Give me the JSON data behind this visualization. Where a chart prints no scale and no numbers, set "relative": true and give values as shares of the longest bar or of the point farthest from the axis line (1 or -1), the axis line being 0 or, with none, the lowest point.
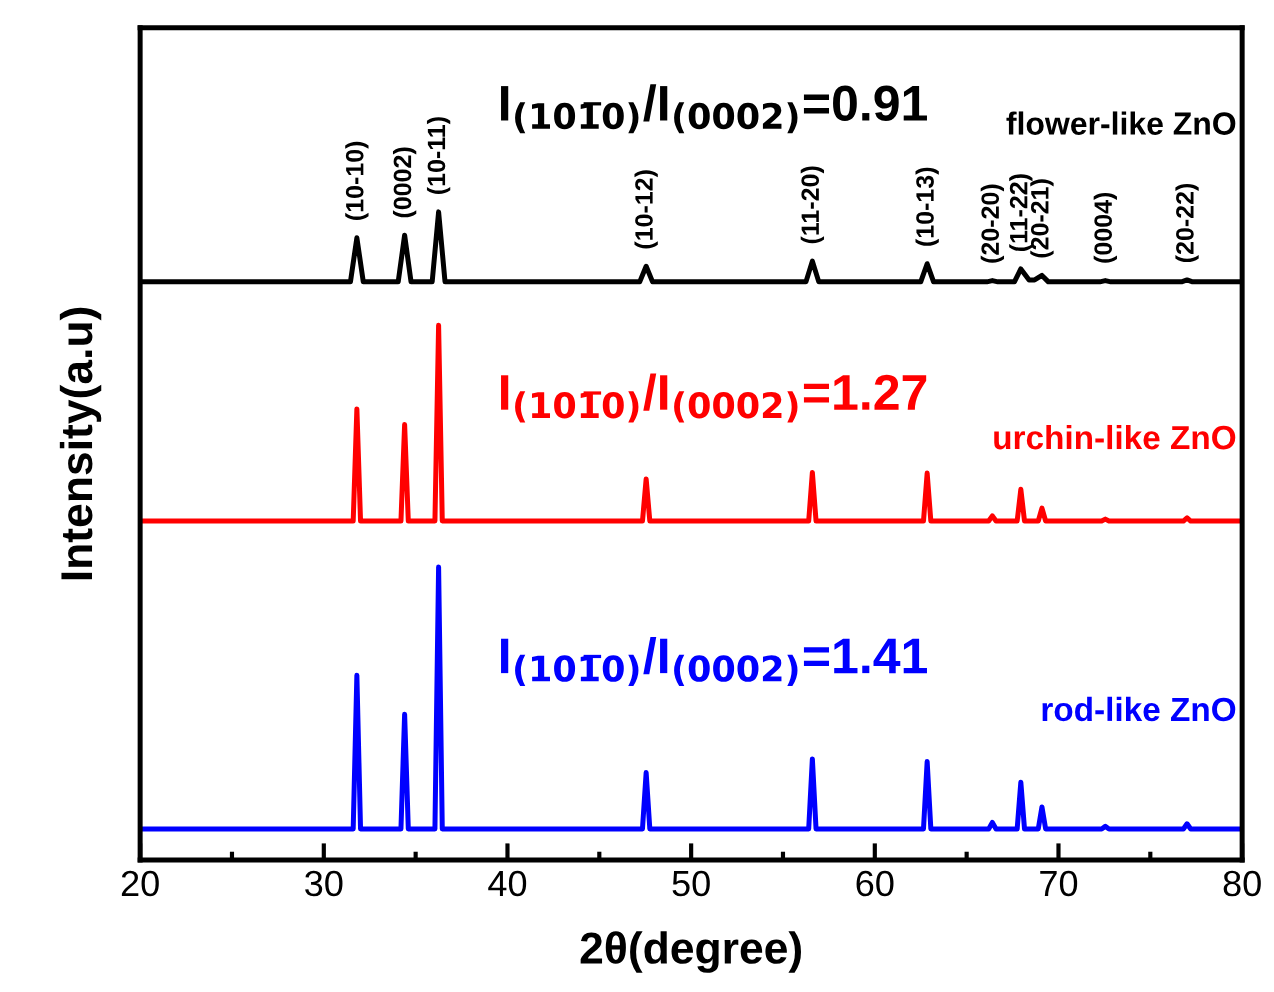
{
  "chart_data": {
    "type": "line",
    "relative": true,
    "xlabel": "2θ(degree)",
    "ylabel": "Intensity(a.u)",
    "xlim": [
      20,
      80
    ],
    "xticks": [
      20,
      30,
      40,
      50,
      60,
      70,
      80
    ],
    "grid": false,
    "legend": false,
    "marker": "none",
    "line_style": "solid",
    "x": [
      20,
      31.6,
      31.8,
      32.0,
      34.2,
      34.4,
      34.6,
      36.05,
      36.25,
      36.45,
      47.35,
      47.55,
      47.75,
      56.4,
      56.6,
      56.8,
      62.65,
      62.85,
      63.05,
      66.2,
      66.4,
      66.6,
      67.75,
      67.95,
      68.15,
      68.9,
      69.1,
      69.3,
      72.35,
      72.55,
      72.75,
      76.8,
      77.0,
      77.2,
      80
    ],
    "series": [
      {
        "name": "flower-like ZnO",
        "color": "#000000",
        "x": [
          20,
          31.45,
          31.8,
          32.15,
          34.05,
          34.4,
          34.75,
          35.9,
          36.25,
          36.6,
          47.2,
          47.55,
          47.9,
          56.25,
          56.6,
          56.95,
          62.5,
          62.85,
          63.2,
          66.1,
          66.4,
          66.7,
          67.6,
          67.95,
          68.4,
          68.7,
          69.1,
          69.45,
          72.25,
          72.55,
          72.85,
          76.7,
          77.0,
          77.3,
          80
        ],
        "values": [
          0.892,
          0.892,
          0.96,
          0.892,
          0.892,
          0.964,
          0.892,
          0.892,
          1.0,
          0.892,
          0.892,
          0.916,
          0.892,
          0.892,
          0.924,
          0.892,
          0.892,
          0.92,
          0.892,
          0.892,
          0.894,
          0.892,
          0.892,
          0.912,
          0.895,
          0.895,
          0.902,
          0.892,
          0.892,
          0.894,
          0.892,
          0.892,
          0.895,
          0.892,
          0.892
        ]
      },
      {
        "name": "urchin-like ZnO",
        "color": "#ff0000",
        "values": [
          0.523,
          0.523,
          0.696,
          0.523,
          0.523,
          0.672,
          0.523,
          0.523,
          0.825,
          0.523,
          0.523,
          0.588,
          0.523,
          0.523,
          0.598,
          0.523,
          0.523,
          0.597,
          0.523,
          0.523,
          0.531,
          0.523,
          0.523,
          0.572,
          0.523,
          0.523,
          0.543,
          0.523,
          0.523,
          0.526,
          0.523,
          0.523,
          0.528,
          0.523,
          0.523
        ]
      },
      {
        "name": "rod-like ZnO",
        "color": "#0000ff",
        "values": [
          0.048,
          0.048,
          0.285,
          0.048,
          0.048,
          0.225,
          0.048,
          0.048,
          0.452,
          0.048,
          0.048,
          0.135,
          0.048,
          0.048,
          0.156,
          0.048,
          0.048,
          0.152,
          0.048,
          0.048,
          0.058,
          0.048,
          0.048,
          0.12,
          0.048,
          0.048,
          0.082,
          0.048,
          0.048,
          0.052,
          0.048,
          0.048,
          0.056,
          0.048,
          0.048
        ]
      }
    ],
    "annotations": [
      "I$_{(101̅0)}$/I$_{(0002)}$=0.91",
      "I$_{(101̅0)}$/I$_{(0002)}$=1.27",
      "I$_{(101̅0)}$/I$_{(0002)}$=1.41",
      {
        "text": "(10-10)",
        "x": 31.8,
        "y": 0.96
      },
      {
        "text": "(0002)",
        "x": 34.4,
        "y": 0.964
      },
      {
        "text": "(10-11)",
        "x": 36.25,
        "y": 1.0
      },
      {
        "text": "(10-12)",
        "x": 47.55,
        "y": 0.916
      },
      {
        "text": "(11-20)",
        "x": 56.6,
        "y": 0.924
      },
      {
        "text": "(10-13)",
        "x": 62.85,
        "y": 0.92
      },
      {
        "text": "(20-20)",
        "x": 66.4,
        "y": 0.894
      },
      {
        "text": "(11-22)",
        "x": 67.95,
        "y": 0.912
      },
      {
        "text": "(20-21)",
        "x": 69.1,
        "y": 0.902
      },
      {
        "text": "(0004)",
        "x": 72.55,
        "y": 0.894
      },
      {
        "text": "(20-22)",
        "x": 77.0,
        "y": 0.895
      }
    ]
  }
}
